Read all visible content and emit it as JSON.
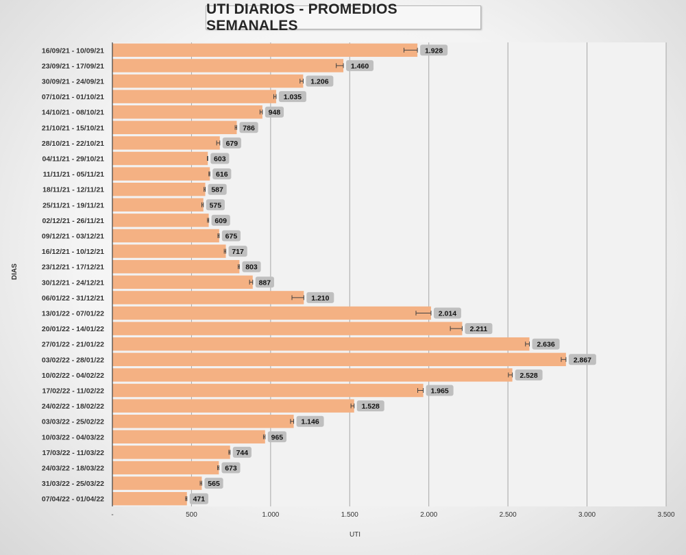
{
  "chart_data": {
    "type": "bar",
    "orientation": "horizontal",
    "title": "UTI DIARIOS - PROMEDIOS SEMANALES",
    "xlabel": "UTI",
    "ylabel": "DIAS",
    "xlim": [
      0,
      3500
    ],
    "x_ticks": [
      0,
      500,
      1000,
      1500,
      2000,
      2500,
      3000,
      3500
    ],
    "x_tick_labels": [
      "-",
      "500",
      "1.000",
      "1.500",
      "2.000",
      "2.500",
      "3.000",
      "3.500"
    ],
    "grid": "vertical",
    "bar_color": "#f4b183",
    "label_bg_color": "#bfbfbf",
    "categories": [
      "16/09/21 - 10/09/21",
      "23/09/21 - 17/09/21",
      "30/09/21 - 24/09/21",
      "07/10/21 - 01/10/21",
      "14/10/21 - 08/10/21",
      "21/10/21 - 15/10/21",
      "28/10/21 - 22/10/21",
      "04/11/21 - 29/10/21",
      "11/11/21 - 05/11/21",
      "18/11/21 - 12/11/21",
      "25/11/21 - 19/11/21",
      "02/12/21 - 26/11/21",
      "09/12/21 - 03/12/21",
      "16/12/21 - 10/12/21",
      "23/12/21 - 17/12/21",
      "30/12/21 - 24/12/21",
      "06/01/22 - 31/12/21",
      "13/01/22 - 07/01/22",
      "20/01/22 - 14/01/22",
      "27/01/22 - 21/01/22",
      "03/02/22 - 28/01/22",
      "10/02/22 - 04/02/22",
      "17/02/22 - 11/02/22",
      "24/02/22 - 18/02/22",
      "03/03/22 - 25/02/22",
      "10/03/22 - 04/03/22",
      "17/03/22 - 11/03/22",
      "24/03/22 - 18/03/22",
      "31/03/22 - 25/03/22",
      "07/04/22 - 01/04/22"
    ],
    "values": [
      1928,
      1460,
      1206,
      1035,
      948,
      786,
      679,
      603,
      616,
      587,
      575,
      609,
      675,
      717,
      803,
      887,
      1210,
      2014,
      2211,
      2636,
      2867,
      2528,
      1965,
      1528,
      1146,
      965,
      744,
      673,
      565,
      471
    ],
    "value_labels": [
      "1.928",
      "1.460",
      "1.206",
      "1.035",
      "948",
      "786",
      "679",
      "603",
      "616",
      "587",
      "575",
      "609",
      "675",
      "717",
      "803",
      "887",
      "1.210",
      "2.014",
      "2.211",
      "2.636",
      "2.867",
      "2.528",
      "1.965",
      "1.528",
      "1.146",
      "965",
      "744",
      "673",
      "565",
      "471"
    ],
    "error_bars": [
      85,
      45,
      20,
      15,
      15,
      10,
      20,
      3,
      6,
      8,
      10,
      8,
      8,
      10,
      8,
      20,
      75,
      95,
      75,
      25,
      30,
      25,
      35,
      20,
      20,
      10,
      8,
      8,
      10,
      8
    ]
  }
}
